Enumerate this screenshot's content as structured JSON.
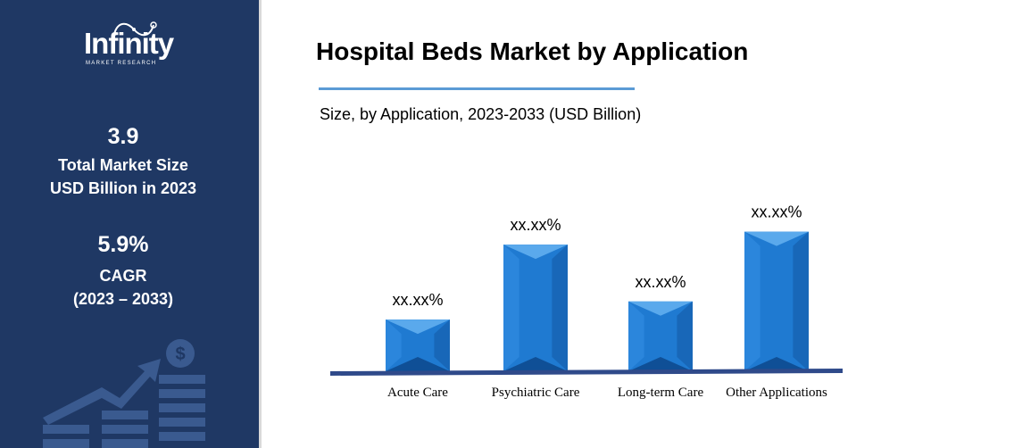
{
  "brand": {
    "name": "Infinity",
    "tagline": "MARKET RESEARCH"
  },
  "stats": {
    "market_size_value": "3.9",
    "market_size_label_1": "Total Market Size",
    "market_size_label_2": "USD Billion in 2023",
    "cagr_value": "5.9%",
    "cagr_label": "CAGR",
    "cagr_period": "(2023 – 2033)"
  },
  "colors": {
    "panel_bg": "#1f3864",
    "accent_line": "#5b9bd5",
    "bar_front": "#1f7ad1",
    "bar_dark": "#0f4f96",
    "axis": "#2f4a8a"
  },
  "icons": {
    "logo": "infinity-swirl-icon",
    "graphic": "dollar-growth-chart-icon"
  },
  "chart_data": {
    "type": "bar",
    "title": "Hospital Beds Market by Application",
    "subtitle": "Size, by Application, 2023-2033 (USD Billion)",
    "categories": [
      "Acute Care",
      "Psychiatric Care",
      "Long-term Care",
      "Other Applications"
    ],
    "values": [
      1,
      2.45,
      1.35,
      2.7
    ],
    "data_labels": [
      "xx.xx%",
      "xx.xx%",
      "xx.xx%",
      "xx.xx%"
    ],
    "xlabel": "",
    "ylabel": "",
    "ylim": [
      0,
      2.9
    ],
    "grid": false
  }
}
